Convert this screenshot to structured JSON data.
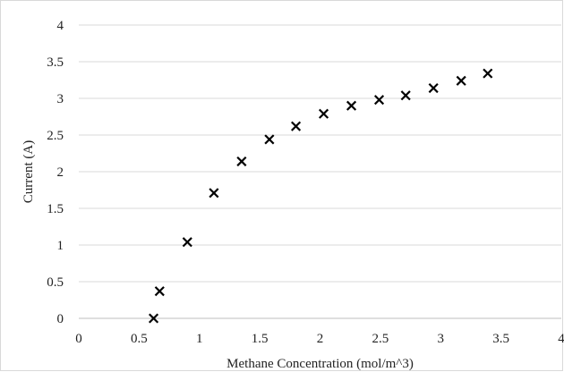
{
  "chart_data": {
    "type": "scatter",
    "title": "",
    "xlabel": "Methane Concentration (mol/m^3)",
    "ylabel": "Current (A)",
    "xlim": [
      0,
      4
    ],
    "ylim": [
      0,
      4
    ],
    "xticks": [
      "0",
      "0.5",
      "1",
      "1.5",
      "2",
      "2.5",
      "3",
      "3.5",
      "4"
    ],
    "yticks": [
      "0",
      "0.5",
      "1",
      "1.5",
      "2",
      "2.5",
      "3",
      "3.5",
      "4"
    ],
    "grid": "horizontal",
    "marker": "x",
    "marker_color": "#000000",
    "legend": "none",
    "series": [
      {
        "x": [
          0.62,
          0.67,
          0.9,
          1.12,
          1.35,
          1.58,
          1.8,
          2.03,
          2.26,
          2.49,
          2.71,
          2.94,
          3.17,
          3.39
        ],
        "y": [
          0.0,
          0.37,
          1.04,
          1.71,
          2.14,
          2.44,
          2.62,
          2.79,
          2.9,
          2.98,
          3.04,
          3.14,
          3.24,
          3.34
        ]
      }
    ]
  }
}
